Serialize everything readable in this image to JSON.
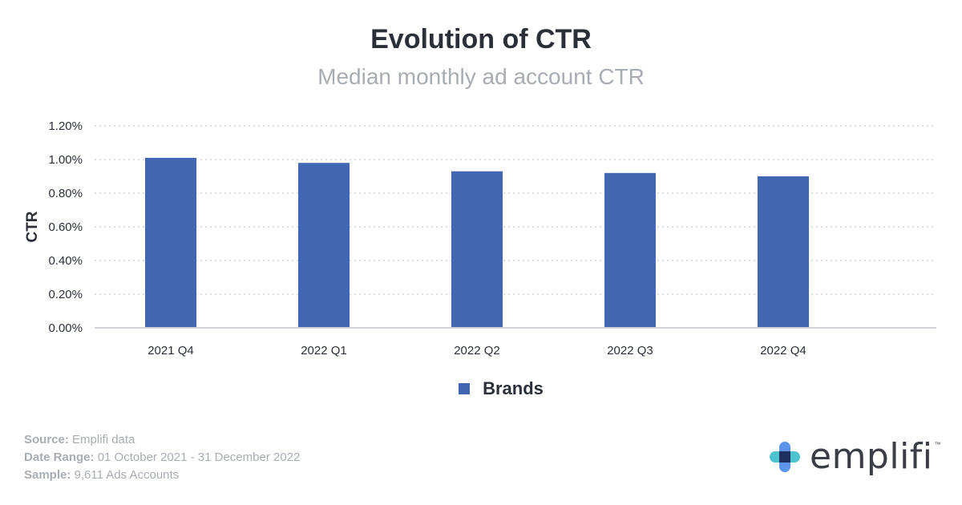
{
  "chart_data": {
    "type": "bar",
    "title": "Evolution of CTR",
    "subtitle": "Median monthly ad account CTR",
    "ylabel": "CTR",
    "xlabel": "",
    "categories": [
      "2021 Q4",
      "2022 Q1",
      "2022 Q2",
      "2022 Q3",
      "2022 Q4"
    ],
    "series": [
      {
        "name": "Brands",
        "values": [
          1.01,
          0.98,
          0.93,
          0.92,
          0.9
        ]
      }
    ],
    "ylim": [
      0,
      1.2
    ],
    "yticks": [
      "0.00%",
      "0.20%",
      "0.40%",
      "0.60%",
      "0.80%",
      "1.00%",
      "1.20%"
    ],
    "grid": true,
    "legend_position": "bottom-center",
    "bar_color": "#4267b2"
  },
  "footer": {
    "source_label": "Source:",
    "source_value": "Emplifi data",
    "date_label": "Date Range:",
    "date_value": "01 October 2021 - 31 December 2022",
    "sample_label": "Sample:",
    "sample_value": "9,611 Ads Accounts"
  },
  "brand": {
    "name": "emplifi",
    "trademark": "™",
    "logo_icon": "emplifi-cross-icon"
  }
}
